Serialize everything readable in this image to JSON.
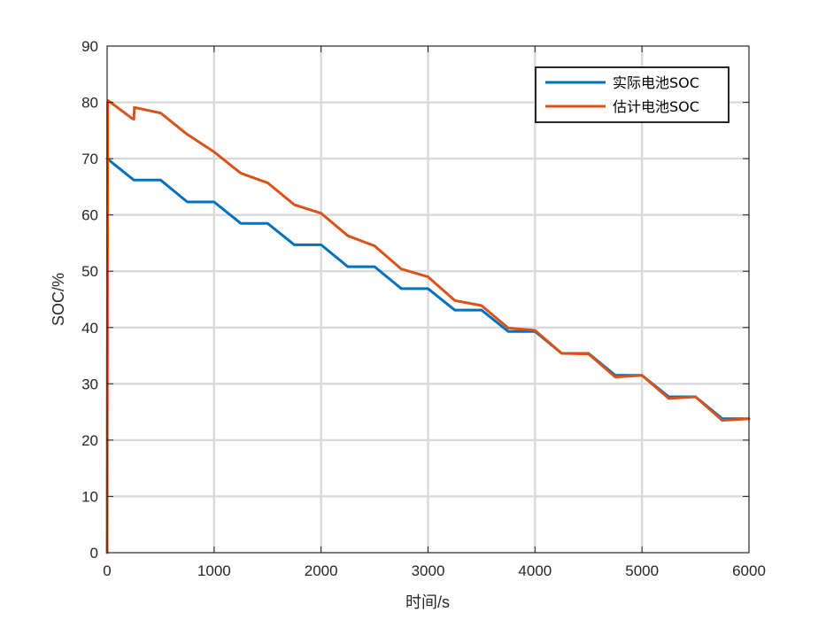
{
  "chart_data": {
    "type": "line",
    "title": "",
    "xlabel": "时间/s",
    "ylabel": "SOC/%",
    "xlim": [
      0,
      6000
    ],
    "ylim": [
      0,
      90
    ],
    "xticks": [
      0,
      1000,
      2000,
      3000,
      4000,
      5000,
      6000
    ],
    "yticks": [
      0,
      10,
      20,
      30,
      40,
      50,
      60,
      70,
      80,
      90
    ],
    "grid": true,
    "legend_position": "top-right",
    "series": [
      {
        "name": "实际电池SOC",
        "color": "#0072bd",
        "x": [
          0,
          250,
          500,
          750,
          1000,
          1250,
          1500,
          1750,
          2000,
          2250,
          2500,
          2750,
          3000,
          3250,
          3500,
          3750,
          4000,
          4250,
          4500,
          4750,
          5000,
          5250,
          5500,
          5750,
          6000
        ],
        "y": [
          70,
          66.2,
          66.2,
          62.3,
          62.3,
          58.5,
          58.5,
          54.7,
          54.7,
          50.8,
          50.8,
          46.9,
          46.9,
          43.1,
          43.1,
          39.3,
          39.3,
          35.4,
          35.4,
          31.5,
          31.5,
          27.7,
          27.7,
          23.8,
          23.8
        ]
      },
      {
        "name": "估计电池SOC",
        "color": "#d95319",
        "x": [
          0,
          5,
          10,
          230,
          250,
          255,
          500,
          750,
          1000,
          1250,
          1500,
          1750,
          2000,
          2250,
          2500,
          2750,
          3000,
          3250,
          3500,
          3750,
          4000,
          4250,
          4500,
          4750,
          5000,
          5250,
          5500,
          5750,
          6000
        ],
        "y": [
          0,
          80,
          80.3,
          77.2,
          77,
          79.1,
          78.1,
          74.3,
          71.2,
          67.4,
          65.7,
          61.8,
          60.3,
          56.3,
          54.5,
          50.4,
          49,
          44.8,
          43.9,
          39.9,
          39.5,
          35.4,
          35.3,
          31.2,
          31.5,
          27.4,
          27.7,
          23.5,
          23.8
        ]
      }
    ]
  }
}
